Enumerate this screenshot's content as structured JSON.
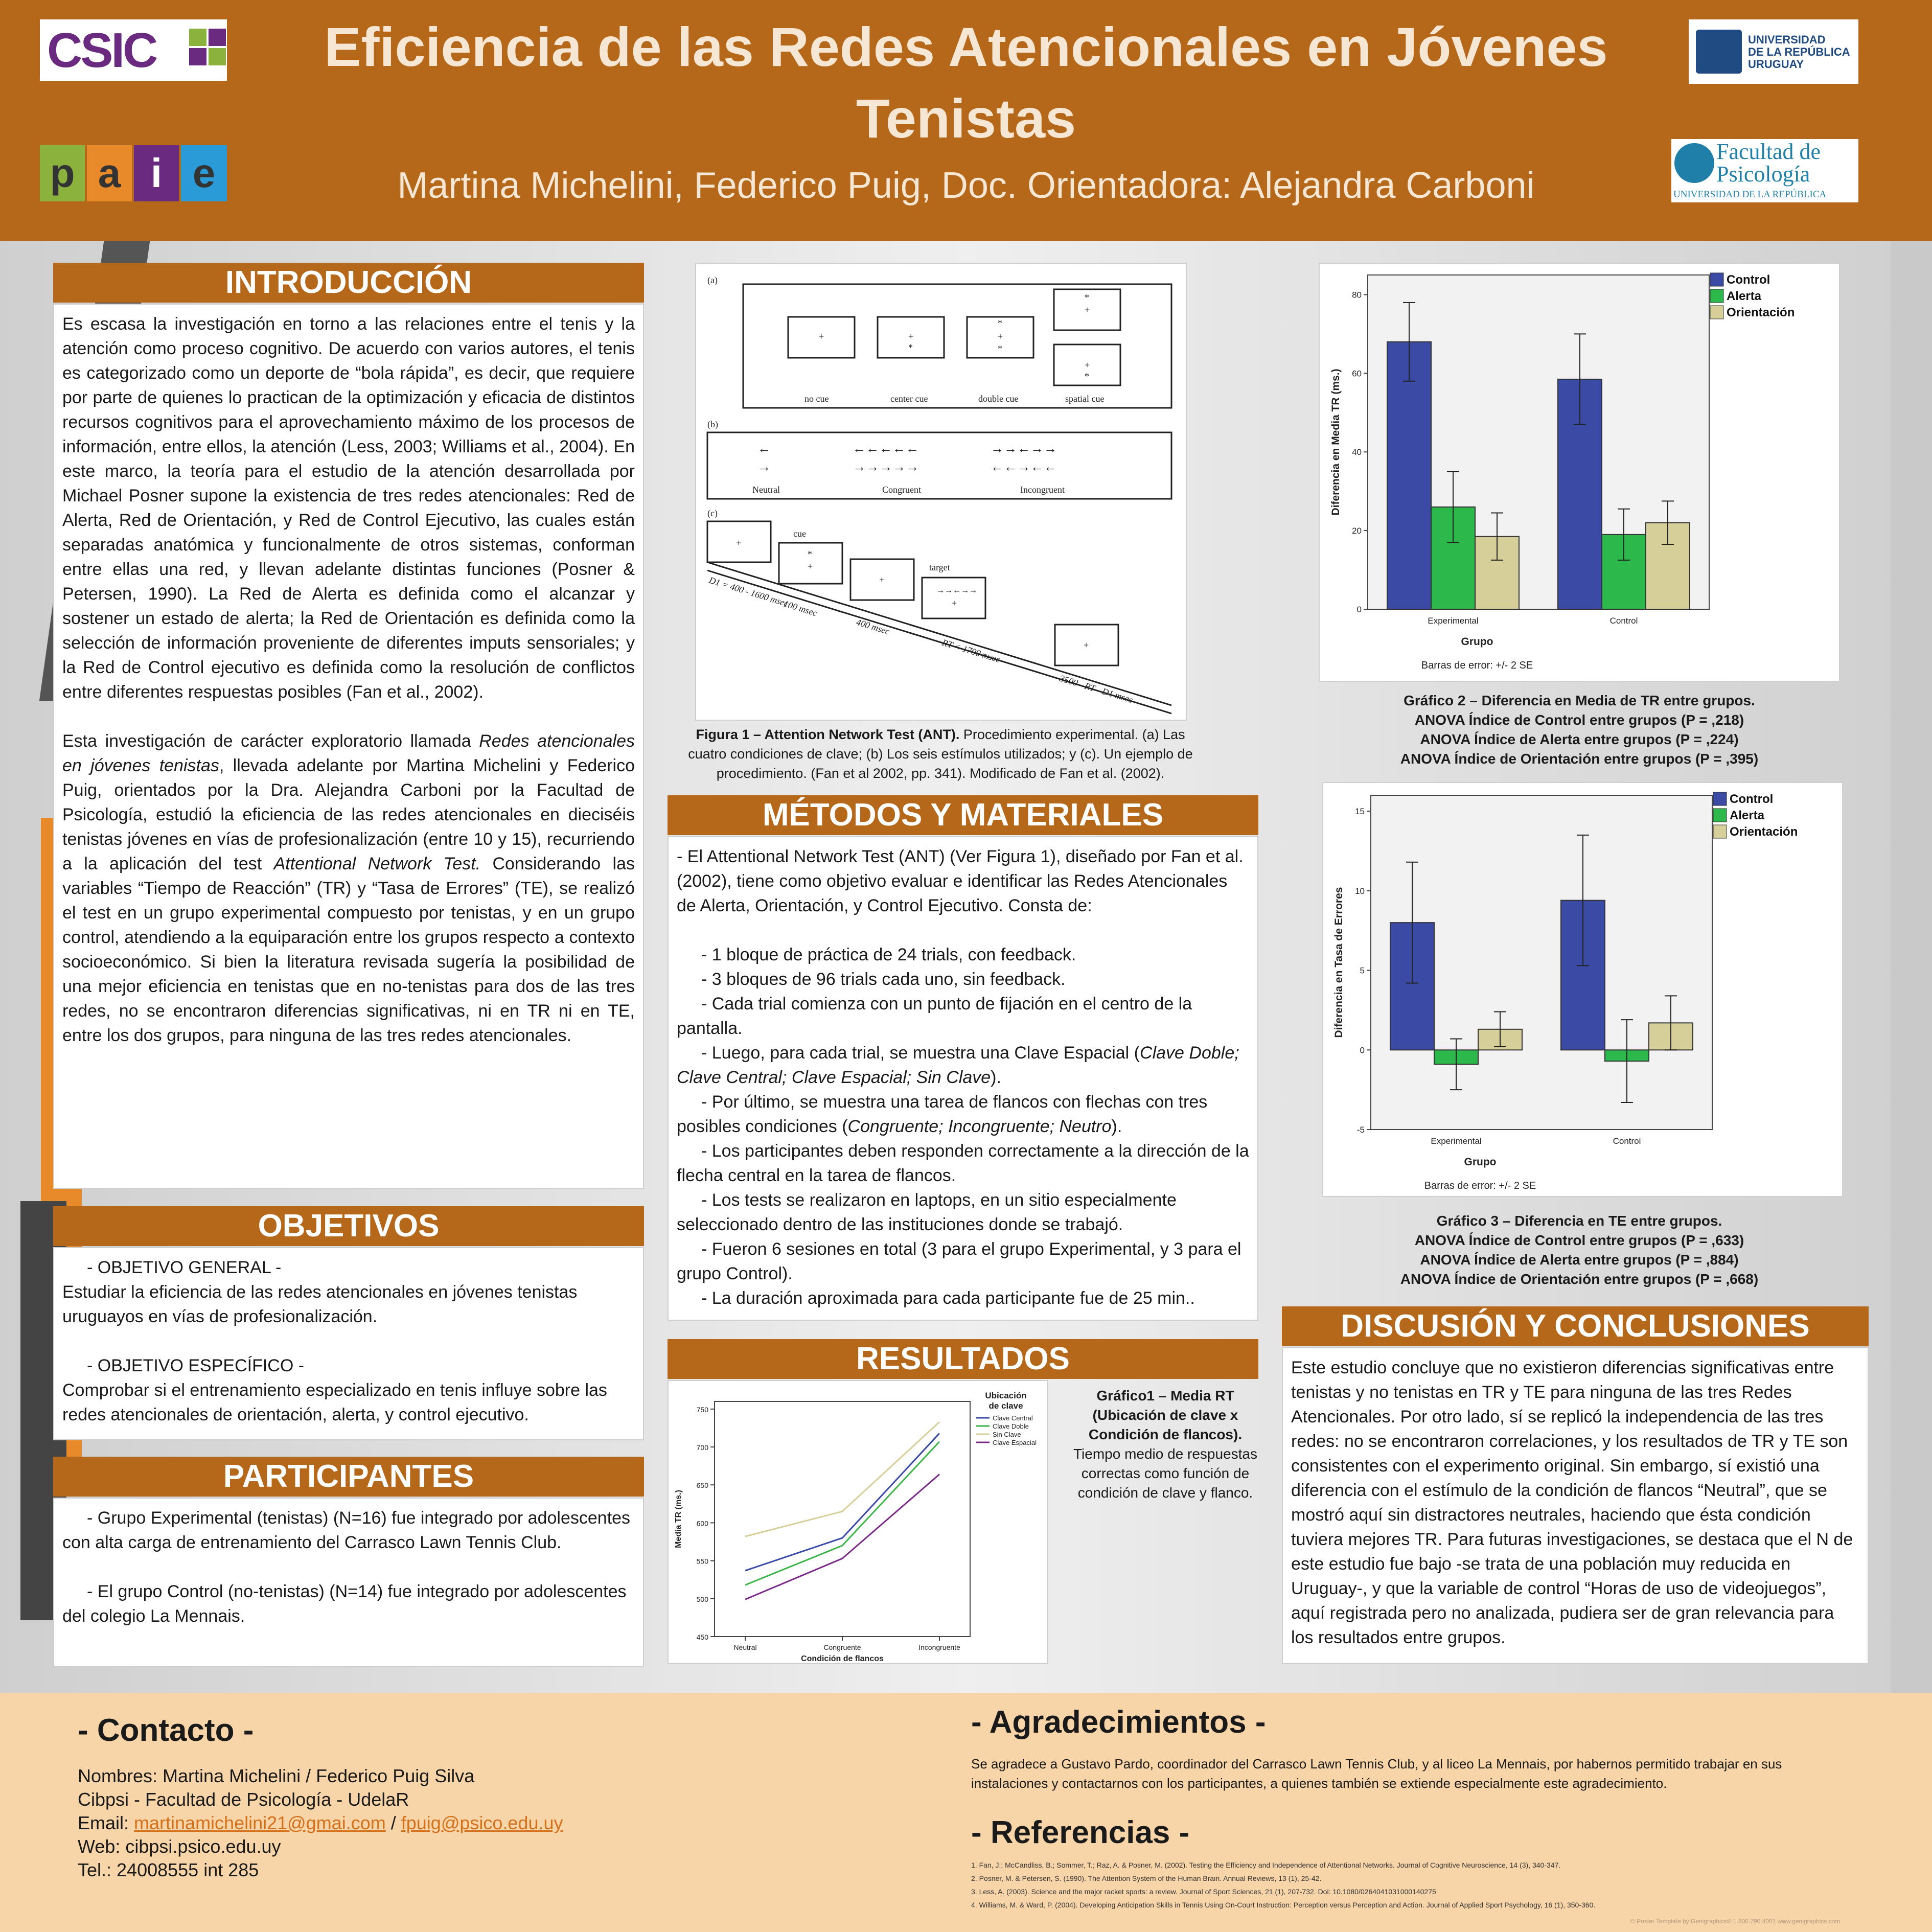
{
  "header": {
    "title": "Eficiencia de las Redes Atencionales en Jóvenes Tenistas",
    "authors": "Martina Michelini, Federico Puig, Doc. Orientadora: Alejandra Carboni",
    "logos": {
      "csic": "CSIC",
      "paie": [
        "p",
        "a",
        "i",
        "e"
      ],
      "udelar": [
        "UNIVERSIDAD",
        "DE LA REPÚBLICA",
        "URUGUAY"
      ],
      "psico": [
        "Facultad de",
        "Psicología",
        "UNIVERSIDAD DE LA REPÚBLICA"
      ]
    }
  },
  "intro": {
    "heading": "INTRODUCCIÓN",
    "p1": "Es escasa la investigación en torno a las relaciones entre el tenis y la atención como proceso cognitivo. De acuerdo con varios autores, el tenis es categorizado como un deporte de “bola rápida”, es decir, que requiere por parte de quienes lo practican de la optimización y eficacia de distintos recursos cognitivos para el aprovechamiento máximo de los procesos de información, entre ellos, la atención (Less, 2003; Williams et al., 2004). En este marco, la teoría para el estudio de la atención desarrollada por Michael Posner supone la existencia de tres redes atencionales: Red de Alerta, Red de Orientación, y Red de Control Ejecutivo, las cuales están separadas anatómica y funcionalmente de otros sistemas, conforman entre ellas una red, y llevan adelante distintas funciones (Posner & Petersen, 1990). La Red de Alerta es definida como el alcanzar y sostener un estado de alerta; la Red de Orientación es definida como la selección de información proveniente de diferentes imputs sensoriales; y la Red de Control ejecutivo es definida como la resolución de conflictos entre diferentes respuestas posibles (Fan et al., 2002).",
    "p2a": "Esta investigación de carácter exploratorio llamada ",
    "p2b": "Redes atencionales en jóvenes tenistas",
    "p2c": ", llevada adelante por Martina Michelini y Federico Puig, orientados por la Dra. Alejandra Carboni por la Facultad de Psicología, estudió la eficiencia de las redes atencionales en dieciséis tenistas jóvenes en vías de profesionalización (entre 10 y 15), recurriendo a la aplicación del test ",
    "p2d": "Attentional Network Test.",
    "p2e": " Considerando las variables “Tiempo de Reacción” (TR) y “Tasa de Errores” (TE), se realizó el test en un grupo experimental compuesto por tenistas, y en un grupo control, atendiendo a la equiparación entre los grupos respecto a contexto socioeconómico. Si bien la literatura revisada sugería la posibilidad de una mejor eficiencia en tenistas que en no-tenistas para dos de las tres redes, no se encontraron diferencias significativas, ni en TR ni en TE, entre los dos grupos, para ninguna de las tres redes atencionales."
  },
  "objetivos": {
    "heading": "OBJETIVOS",
    "general_label": "- OBJETIVO GENERAL -",
    "general": "Estudiar la eficiencia de las redes atencionales en jóvenes tenistas uruguayos en vías de profesionalización.",
    "especifico_label": "- OBJETIVO ESPECÍFICO -",
    "especifico": "Comprobar si el entrenamiento especializado en tenis influye sobre las redes atencionales de orientación, alerta, y control ejecutivo."
  },
  "participantes": {
    "heading": "PARTICIPANTES",
    "p1": "- Grupo Experimental (tenistas) (N=16) fue integrado por adolescentes con alta carga de entrenamiento del Carrasco Lawn Tennis Club.",
    "p2": "- El grupo Control (no-tenistas) (N=14) fue integrado por adolescentes del colegio La Mennais."
  },
  "figura1": {
    "labels": {
      "a": "(a)",
      "b": "(b)",
      "c": "(c)",
      "no_cue": "no cue",
      "center_cue": "center cue",
      "double_cue": "double cue",
      "spatial_cue": "spatial cue",
      "neutral": "Neutral",
      "congruent": "Congruent",
      "incongruent": "Incongruent",
      "cue": "cue",
      "target": "target",
      "t1": "D1 = 400 - 1600 msec",
      "t2": "100 msec",
      "t3": "400 msec",
      "t4": "RT < 1700 msec",
      "t5": "3500 - RT - D1 msec"
    },
    "caption_bold": "Figura 1 – Attention Network Test (ANT).",
    "caption_rest": " Procedimiento experimental. (a) Las cuatro condiciones de clave; (b) Los seis estímulos utilizados; y (c). Un ejemplo de procedimiento. (Fan et al 2002, pp. 341). Modificado de Fan et al. (2002)."
  },
  "metodos": {
    "heading": "MÉTODOS Y MATERIALES",
    "intro": "- El Attentional Network Test (ANT) (Ver Figura 1), diseñado por Fan et al.(2002), tiene como objetivo evaluar e identificar las Redes Atencionales de Alerta, Orientación, y Control Ejecutivo. Consta de:",
    "b1": "- 1 bloque de práctica de 24 trials, con feedback.",
    "b2": "- 3 bloques de 96 trials cada uno, sin feedback.",
    "b3": "- Cada trial comienza con un punto de fijación en el centro de la pantalla.",
    "b4a": "- Luego, para cada trial, se muestra una Clave Espacial (",
    "b4b": "Clave Doble; Clave Central; Clave Espacial; Sin Clave",
    "b4c": ").",
    "b5a": "- Por último, se muestra una tarea de flancos con flechas con tres posibles condiciones (",
    "b5b": "Congruente; Incongruente; Neutro",
    "b5c": ").",
    "b6": "- Los participantes deben responden correctamente a la dirección de la flecha central en la tarea de flancos.",
    "b7": "- Los tests se realizaron en laptops, en un sitio especialmente seleccionado dentro de las instituciones donde se trabajó.",
    "b8": "- Fueron 6 sesiones en total (3 para el grupo Experimental, y 3 para el grupo Control).",
    "b9": "- La duración aproximada para cada participante fue de 25 min.."
  },
  "resultados": {
    "heading": "RESULTADOS",
    "caption_bold": "Gráfico1 – Media RT (Ubicación de clave x Condición de flancos).",
    "caption_rest": "Tiempo medio de respuestas correctas como función de condición de clave y flanco."
  },
  "grafico2": {
    "c1": "Gráfico 2 – Diferencia en Media de TR entre grupos.",
    "c2": "ANOVA Índice de Control entre grupos (P = ,218)",
    "c3": "ANOVA Índice de Alerta entre grupos (P = ,224)",
    "c4": "ANOVA Índice de Orientación entre grupos (P = ,395)"
  },
  "grafico3": {
    "c1": "Gráfico 3 – Diferencia en TE entre grupos.",
    "c2": "ANOVA Índice de Control entre grupos (P = ,633)",
    "c3": "ANOVA Índice de Alerta entre grupos (P = ,884)",
    "c4": "ANOVA Índice de Orientación entre grupos (P = ,668)"
  },
  "discusion": {
    "heading": "DISCUSIÓN Y CONCLUSIONES",
    "text": "Este estudio concluye que no existieron diferencias significativas entre tenistas y no tenistas en TR y TE para ninguna de las tres Redes Atencionales. Por otro lado, sí se replicó la independencia de las tres redes: no se encontraron correlaciones, y los resultados de TR y TE son consistentes con el experimento original. Sin embargo, sí existió una diferencia con el estímulo de la condición de flancos “Neutral”, que se mostró aquí sin distractores neutrales, haciendo que ésta condición tuviera mejores TR. Para futuras investigaciones, se destaca que el N de este estudio fue bajo -se trata de una población muy reducida en Uruguay-, y que la variable de control “Horas de uso de videojuegos”, aquí registrada pero no analizada, pudiera ser de gran relevancia para los resultados entre grupos."
  },
  "contacto": {
    "heading": "- Contacto -",
    "nombres": "Nombres: Martina Michelini / Federico Puig Silva",
    "cibpsi": "Cibpsi - Facultad de Psicología - UdelaR",
    "email_label": "Email: ",
    "email1": "martinamichelini21@gmai.com",
    "email_sep": " / ",
    "email2": "fpuig@psico.edu.uy",
    "web": "Web: cibpsi.psico.edu.uy",
    "tel": "Tel.: 24008555 int 285"
  },
  "agradecimientos": {
    "heading": "- Agradecimientos -",
    "text": "Se agradece a Gustavo Pardo, coordinador del Carrasco Lawn Tennis Club, y al liceo La Mennais, por habernos permitido trabajar en sus instalaciones y contactarnos con los participantes, a quienes también se extiende especialmente este agradecimiento."
  },
  "referencias": {
    "heading": "- Referencias -",
    "items": [
      "1.      Fan, J.; McCandliss, B.; Sommer, T.; Raz, A. & Posner, M. (2002). Testing the Efficiency and Independence of Attentional Networks. Journal of Cognitive Neuroscience, 14 (3), 340-347.",
      "2.      Posner, M. & Petersen, S. (1990). The Attention System of the Human Brain. Annual Reviews, 13 (1), 25-42.",
      "3.      Less, A. (2003). Science and the major racket sports: a review. Journal of Sport Sciences, 21 (1), 207-732. Doi: 10.1080/0264041031000140275",
      "4.      Williams, M. & Ward, P. (2004). Developing Anticipation Skills in Tennis Using On-Court Instruction: Perception versus Perception and Action. Journal of Applied Sport Psychology, 16 (1), 350-360."
    ],
    "credit": "© Poster Template by Genigraphics® 1.800.790.4001 www.genigraphics.com"
  },
  "chart_data": [
    {
      "type": "line",
      "xlabel": "Condición de flancos",
      "ylabel": "Media TR (ms.)",
      "legend_title": "Ubicación de clave",
      "categories": [
        "Neutral",
        "Congruente",
        "Incongruente"
      ],
      "ylim": [
        450,
        760
      ],
      "yticks": [
        450,
        500,
        550,
        600,
        650,
        700,
        750
      ],
      "series": [
        {
          "name": "Clave Central",
          "values": [
            537,
            580,
            718
          ],
          "color": "#3a4aa5"
        },
        {
          "name": "Clave Doble",
          "values": [
            518,
            570,
            707
          ],
          "color": "#3bb54a"
        },
        {
          "name": "Sin Clave",
          "values": [
            582,
            615,
            733
          ],
          "color": "#d6cf9a"
        },
        {
          "name": "Clave Espacial",
          "values": [
            499,
            553,
            664
          ],
          "color": "#7b2a8a"
        }
      ]
    },
    {
      "type": "bar",
      "xlabel": "Grupo",
      "ylabel": "Diferencia en Media TR (ms.)",
      "note": "Barras de error: +/- 2 SE",
      "categories": [
        "Experimental",
        "Control"
      ],
      "ylim": [
        0,
        85
      ],
      "yticks": [
        0,
        20,
        40,
        60,
        80
      ],
      "series": [
        {
          "name": "Control",
          "values": [
            68,
            58.5
          ],
          "err": [
            10,
            11.5
          ],
          "color": "#3a4aa5"
        },
        {
          "name": "Alerta",
          "values": [
            26,
            19
          ],
          "err": [
            9,
            6.5
          ],
          "color": "#2cb84a"
        },
        {
          "name": "Orientación",
          "values": [
            18.5,
            22
          ],
          "err": [
            6,
            5.5
          ],
          "color": "#d6cf9a"
        }
      ]
    },
    {
      "type": "bar",
      "xlabel": "Grupo",
      "ylabel": "Diferencia en Tasa de Errores",
      "note": "Barras de error: +/- 2 SE",
      "categories": [
        "Experimental",
        "Control"
      ],
      "ylim": [
        -5,
        16
      ],
      "yticks": [
        -5,
        0,
        5,
        10,
        15
      ],
      "series": [
        {
          "name": "Control",
          "values": [
            8,
            9.4
          ],
          "err": [
            3.8,
            4.1
          ],
          "color": "#3a4aa5"
        },
        {
          "name": "Alerta",
          "values": [
            -0.9,
            -0.7
          ],
          "err": [
            1.6,
            2.6
          ],
          "color": "#2cb84a"
        },
        {
          "name": "Orientación",
          "values": [
            1.3,
            1.7
          ],
          "err": [
            1.1,
            1.7
          ],
          "color": "#d6cf9a"
        }
      ]
    }
  ],
  "colors": {
    "accent": "#b5671a",
    "title_text": "#f5e7d3",
    "footer": "#f8d4a9"
  }
}
